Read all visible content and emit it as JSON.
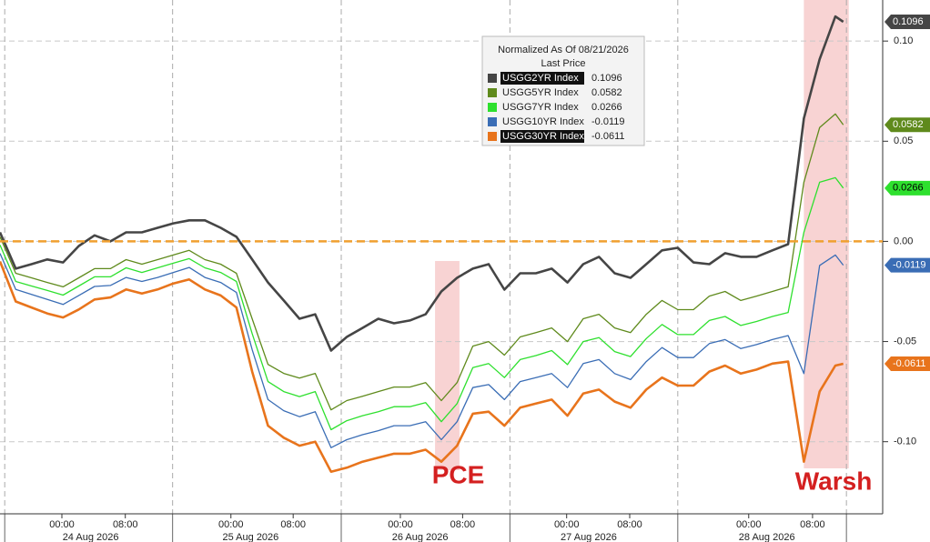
{
  "chart_data": {
    "type": "line",
    "legend_title": "Normalized As Of 08/21/2026",
    "legend_subtitle": "Last Price",
    "x": [
      0,
      2,
      4,
      6,
      8,
      10,
      12,
      14,
      16,
      18,
      20,
      22,
      24,
      26,
      28,
      30,
      32,
      34,
      36,
      38,
      40,
      42,
      44,
      46,
      48,
      50,
      52,
      54,
      56,
      58,
      60,
      62,
      64,
      66,
      68,
      70,
      72,
      74,
      76,
      78,
      80,
      82,
      84,
      86,
      88,
      90,
      92,
      94,
      96,
      98,
      100,
      102,
      104,
      106,
      107
    ],
    "series": [
      {
        "name": "USGG2YR Index",
        "color": "#454545",
        "values": [
          0.0045,
          -0.0136,
          -0.0114,
          -0.009,
          -0.0105,
          -0.0023,
          0.003,
          0,
          0.0045,
          0.0045,
          0.0068,
          0.009,
          0.0105,
          0.0105,
          0.0068,
          0.0023,
          -0.009,
          -0.0205,
          -0.0295,
          -0.0386,
          -0.0364,
          -0.0545,
          -0.0477,
          -0.0432,
          -0.0386,
          -0.0409,
          -0.0395,
          -0.0364,
          -0.025,
          -0.0182,
          -0.0136,
          -0.0114,
          -0.0241,
          -0.0159,
          -0.0159,
          -0.0136,
          -0.0205,
          -0.0114,
          -0.0077,
          -0.0159,
          -0.0182,
          -0.0114,
          -0.0045,
          -0.0032,
          -0.0105,
          -0.0114,
          -0.0059,
          -0.0077,
          -0.0077,
          -0.0045,
          -0.0014,
          0.0614,
          0.0909,
          0.1123,
          0.1096
        ]
      },
      {
        "name": "USGG5YR Index",
        "color": "#5f8a1c",
        "values": [
          0.0023,
          -0.0159,
          -0.0182,
          -0.0205,
          -0.0227,
          -0.0182,
          -0.0136,
          -0.0136,
          -0.0091,
          -0.0114,
          -0.0091,
          -0.0068,
          -0.0045,
          -0.0091,
          -0.0114,
          -0.0159,
          -0.0386,
          -0.0614,
          -0.0659,
          -0.0682,
          -0.0659,
          -0.0841,
          -0.0795,
          -0.0773,
          -0.075,
          -0.0727,
          -0.0727,
          -0.0705,
          -0.0795,
          -0.0705,
          -0.0523,
          -0.05,
          -0.0568,
          -0.0477,
          -0.0455,
          -0.0432,
          -0.05,
          -0.0386,
          -0.0364,
          -0.0432,
          -0.0455,
          -0.0364,
          -0.0295,
          -0.0341,
          -0.0341,
          -0.0273,
          -0.025,
          -0.0295,
          -0.0273,
          -0.025,
          -0.0227,
          0.0295,
          0.0568,
          0.0636,
          0.0582
        ]
      },
      {
        "name": "USGG7YR Index",
        "color": "#2ee02e",
        "values": [
          -0.0018,
          -0.02,
          -0.0223,
          -0.0245,
          -0.0268,
          -0.0223,
          -0.0177,
          -0.0177,
          -0.0132,
          -0.0155,
          -0.0132,
          -0.0109,
          -0.0086,
          -0.0132,
          -0.0155,
          -0.02,
          -0.046,
          -0.07,
          -0.075,
          -0.0775,
          -0.075,
          -0.094,
          -0.0895,
          -0.087,
          -0.085,
          -0.0825,
          -0.0825,
          -0.0805,
          -0.09,
          -0.081,
          -0.063,
          -0.061,
          -0.068,
          -0.059,
          -0.057,
          -0.0545,
          -0.0615,
          -0.05,
          -0.048,
          -0.055,
          -0.0575,
          -0.0485,
          -0.0415,
          -0.0465,
          -0.0465,
          -0.0395,
          -0.0375,
          -0.042,
          -0.04,
          -0.0375,
          -0.0355,
          0.0045,
          0.0295,
          0.0318,
          0.0266
        ]
      },
      {
        "name": "USGG10YR Index",
        "color": "#3a6db5",
        "values": [
          -0.006,
          -0.024,
          -0.0265,
          -0.029,
          -0.0315,
          -0.027,
          -0.0225,
          -0.022,
          -0.018,
          -0.02,
          -0.018,
          -0.0155,
          -0.013,
          -0.018,
          -0.0205,
          -0.0255,
          -0.054,
          -0.079,
          -0.0845,
          -0.0875,
          -0.085,
          -0.103,
          -0.099,
          -0.0965,
          -0.0945,
          -0.092,
          -0.092,
          -0.09,
          -0.099,
          -0.09,
          -0.073,
          -0.0715,
          -0.079,
          -0.07,
          -0.068,
          -0.066,
          -0.073,
          -0.061,
          -0.059,
          -0.066,
          -0.069,
          -0.06,
          -0.053,
          -0.058,
          -0.058,
          -0.051,
          -0.049,
          -0.0535,
          -0.0515,
          -0.049,
          -0.047,
          -0.066,
          -0.012,
          -0.0068,
          -0.0119
        ]
      },
      {
        "name": "USGG30YR Index",
        "color": "#e8741c",
        "values": [
          -0.01,
          -0.03,
          -0.033,
          -0.036,
          -0.038,
          -0.034,
          -0.029,
          -0.028,
          -0.024,
          -0.026,
          -0.024,
          -0.021,
          -0.019,
          -0.024,
          -0.027,
          -0.033,
          -0.065,
          -0.092,
          -0.098,
          -0.102,
          -0.1,
          -0.115,
          -0.113,
          -0.11,
          -0.108,
          -0.106,
          -0.106,
          -0.104,
          -0.11,
          -0.102,
          -0.086,
          -0.085,
          -0.092,
          -0.083,
          -0.081,
          -0.079,
          -0.087,
          -0.076,
          -0.074,
          -0.08,
          -0.083,
          -0.074,
          -0.068,
          -0.072,
          -0.072,
          -0.065,
          -0.062,
          -0.066,
          -0.064,
          -0.061,
          -0.06,
          -0.11,
          -0.075,
          -0.062,
          -0.0611
        ]
      }
    ],
    "xlim": [
      0,
      112
    ],
    "ylim": [
      -0.136,
      0.1205
    ],
    "yticks": [
      {
        "value": 0.1,
        "label": "0.10"
      },
      {
        "value": 0.05,
        "label": "0.05"
      },
      {
        "value": 0,
        "label": "0.00"
      },
      {
        "value": -0.05,
        "label": "-0.05"
      },
      {
        "value": -0.1,
        "label": "-0.10"
      }
    ],
    "xticks": [
      {
        "value": 7.85,
        "label": "00:00"
      },
      {
        "value": 15.9,
        "label": "08:00"
      },
      {
        "value": 29.3,
        "label": "00:00"
      },
      {
        "value": 37.2,
        "label": "08:00"
      },
      {
        "value": 50.8,
        "label": "00:00"
      },
      {
        "value": 58.7,
        "label": "08:00"
      },
      {
        "value": 71.9,
        "label": "00:00"
      },
      {
        "value": 79.9,
        "label": "08:00"
      },
      {
        "value": 95.0,
        "label": "00:00"
      },
      {
        "value": 103.1,
        "label": "08:00"
      }
    ],
    "xdate_ticks": [
      {
        "value": 11.5,
        "label": "24 Aug 2026"
      },
      {
        "value": 31.8,
        "label": "25 Aug 2026"
      },
      {
        "value": 53.3,
        "label": "26 Aug 2026"
      },
      {
        "value": 74.7,
        "label": "27 Aug 2026"
      },
      {
        "value": 97.3,
        "label": "28 Aug 2026"
      }
    ],
    "x_day_lines": [
      0.6,
      21.9,
      43.3,
      64.7,
      86.0,
      107.4
    ],
    "reference_line": 0,
    "highlights": [
      {
        "label": "PCE",
        "x": [
          55.2,
          58.3
        ]
      },
      {
        "label": "Warsh",
        "x": [
          102.0,
          107.7
        ]
      }
    ],
    "grid": true
  }
}
